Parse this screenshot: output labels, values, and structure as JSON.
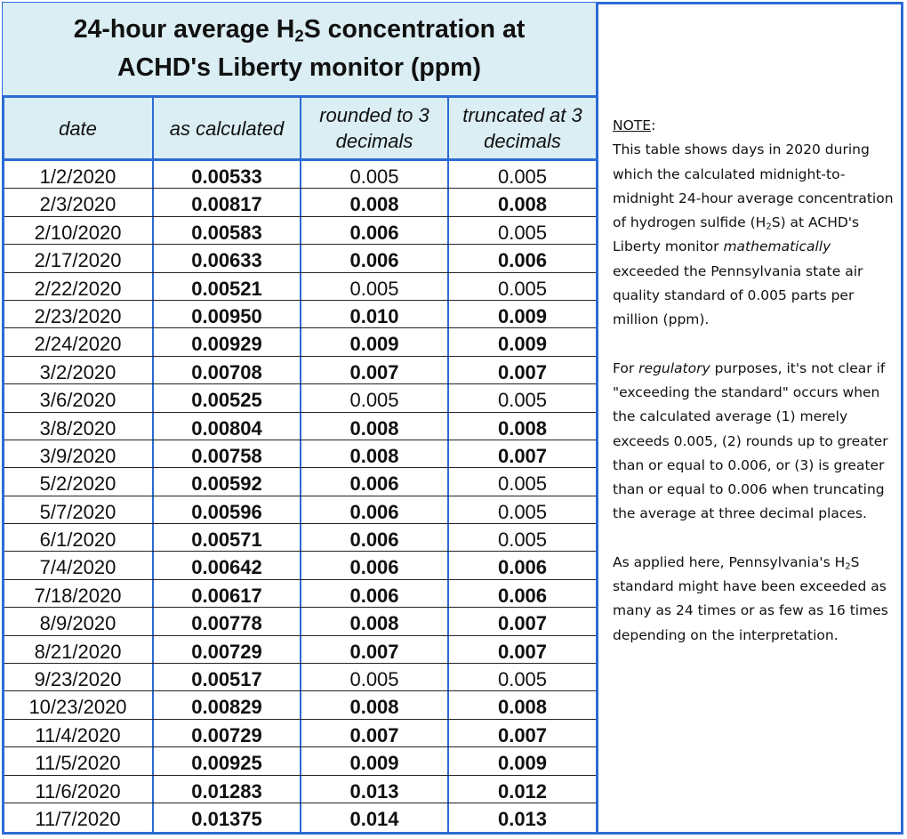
{
  "title": {
    "line1_pre": "24-hour average H",
    "line1_sub": "2",
    "line1_post": "S concentration at",
    "line2": "ACHD's Liberty monitor (ppm)"
  },
  "headers": {
    "date": "date",
    "calculated": "as calculated",
    "rounded": "rounded to 3 decimals",
    "truncated": "truncated at 3 decimals"
  },
  "rows": [
    {
      "date": "1/2/2020",
      "calc": "0.00533",
      "rounded": "0.005",
      "truncated": "0.005",
      "rb": false,
      "tb": false
    },
    {
      "date": "2/3/2020",
      "calc": "0.00817",
      "rounded": "0.008",
      "truncated": "0.008",
      "rb": true,
      "tb": true
    },
    {
      "date": "2/10/2020",
      "calc": "0.00583",
      "rounded": "0.006",
      "truncated": "0.005",
      "rb": true,
      "tb": false
    },
    {
      "date": "2/17/2020",
      "calc": "0.00633",
      "rounded": "0.006",
      "truncated": "0.006",
      "rb": true,
      "tb": true
    },
    {
      "date": "2/22/2020",
      "calc": "0.00521",
      "rounded": "0.005",
      "truncated": "0.005",
      "rb": false,
      "tb": false
    },
    {
      "date": "2/23/2020",
      "calc": "0.00950",
      "rounded": "0.010",
      "truncated": "0.009",
      "rb": true,
      "tb": true
    },
    {
      "date": "2/24/2020",
      "calc": "0.00929",
      "rounded": "0.009",
      "truncated": "0.009",
      "rb": true,
      "tb": true
    },
    {
      "date": "3/2/2020",
      "calc": "0.00708",
      "rounded": "0.007",
      "truncated": "0.007",
      "rb": true,
      "tb": true
    },
    {
      "date": "3/6/2020",
      "calc": "0.00525",
      "rounded": "0.005",
      "truncated": "0.005",
      "rb": false,
      "tb": false
    },
    {
      "date": "3/8/2020",
      "calc": "0.00804",
      "rounded": "0.008",
      "truncated": "0.008",
      "rb": true,
      "tb": true
    },
    {
      "date": "3/9/2020",
      "calc": "0.00758",
      "rounded": "0.008",
      "truncated": "0.007",
      "rb": true,
      "tb": true
    },
    {
      "date": "5/2/2020",
      "calc": "0.00592",
      "rounded": "0.006",
      "truncated": "0.005",
      "rb": true,
      "tb": false
    },
    {
      "date": "5/7/2020",
      "calc": "0.00596",
      "rounded": "0.006",
      "truncated": "0.005",
      "rb": true,
      "tb": false
    },
    {
      "date": "6/1/2020",
      "calc": "0.00571",
      "rounded": "0.006",
      "truncated": "0.005",
      "rb": true,
      "tb": false
    },
    {
      "date": "7/4/2020",
      "calc": "0.00642",
      "rounded": "0.006",
      "truncated": "0.006",
      "rb": true,
      "tb": true
    },
    {
      "date": "7/18/2020",
      "calc": "0.00617",
      "rounded": "0.006",
      "truncated": "0.006",
      "rb": true,
      "tb": true
    },
    {
      "date": "8/9/2020",
      "calc": "0.00778",
      "rounded": "0.008",
      "truncated": "0.007",
      "rb": true,
      "tb": true
    },
    {
      "date": "8/21/2020",
      "calc": "0.00729",
      "rounded": "0.007",
      "truncated": "0.007",
      "rb": true,
      "tb": true
    },
    {
      "date": "9/23/2020",
      "calc": "0.00517",
      "rounded": "0.005",
      "truncated": "0.005",
      "rb": false,
      "tb": false
    },
    {
      "date": "10/23/2020",
      "calc": "0.00829",
      "rounded": "0.008",
      "truncated": "0.008",
      "rb": true,
      "tb": true
    },
    {
      "date": "11/4/2020",
      "calc": "0.00729",
      "rounded": "0.007",
      "truncated": "0.007",
      "rb": true,
      "tb": true
    },
    {
      "date": "11/5/2020",
      "calc": "0.00925",
      "rounded": "0.009",
      "truncated": "0.009",
      "rb": true,
      "tb": true
    },
    {
      "date": "11/6/2020",
      "calc": "0.01283",
      "rounded": "0.013",
      "truncated": "0.012",
      "rb": true,
      "tb": true
    },
    {
      "date": "11/7/2020",
      "calc": "0.01375",
      "rounded": "0.014",
      "truncated": "0.013",
      "rb": true,
      "tb": true
    }
  ],
  "note": {
    "label": "NOTE",
    "label_colon": ":",
    "p1_a": "This table shows days in 2020 during which the calculated midnight-to-midnight 24-hour average concentration of hydrogen sulfide (H",
    "p1_sub": "2",
    "p1_b": "S) at ACHD's Liberty monitor ",
    "p1_italic": "mathematically",
    "p1_c": "  exceeded the Pennsylvania state air quality standard of 0.005 parts per million (ppm).",
    "p2_a": "For ",
    "p2_italic": "regulatory",
    "p2_b": "  purposes, it's not clear if \"exceeding the standard\" occurs when the calculated average (1) merely exceeds 0.005, (2) rounds up to greater than or equal to 0.006, or (3) is greater than or equal to 0.006 when truncating the average at three decimal places.",
    "p3_a": "As applied here, Pennsylvania's H",
    "p3_sub": "2",
    "p3_b": "S standard might have been exceeded as many as 24 times or as few as 16 times depending on the interpretation."
  }
}
